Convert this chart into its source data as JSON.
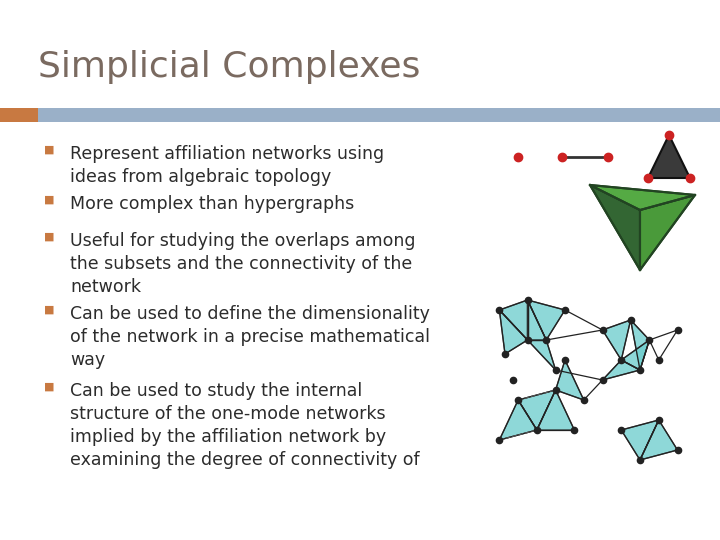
{
  "title": "Simplicial Complexes",
  "title_color": "#7a6a60",
  "title_fontsize": 26,
  "bg_color": "#ffffff",
  "header_bar_color": "#9ab0c8",
  "header_bar_left_color": "#c87941",
  "bullet_color": "#c87941",
  "text_color": "#2c2c2c",
  "bullet_char": "■",
  "bullets": [
    "Represent affiliation networks using\nideas from algebraic topology",
    "More complex than hypergraphs",
    "Useful for studying the overlaps among\nthe subsets and the connectivity of the\nnetwork",
    "Can be used to define the dimensionality\nof the network in a precise mathematical\nway",
    "Can be used to study the internal\nstructure of the one-mode networks\nimplied by the affiliation network by\nexamining the degree of connectivity of"
  ],
  "text_fontsize": 12.5,
  "dot_red": "#cc2222",
  "green_dark": "#2e7d2e",
  "green_light": "#4aaa3a",
  "teal": "#6ecece",
  "dark_node": "#222222",
  "edge_color": "#222222"
}
